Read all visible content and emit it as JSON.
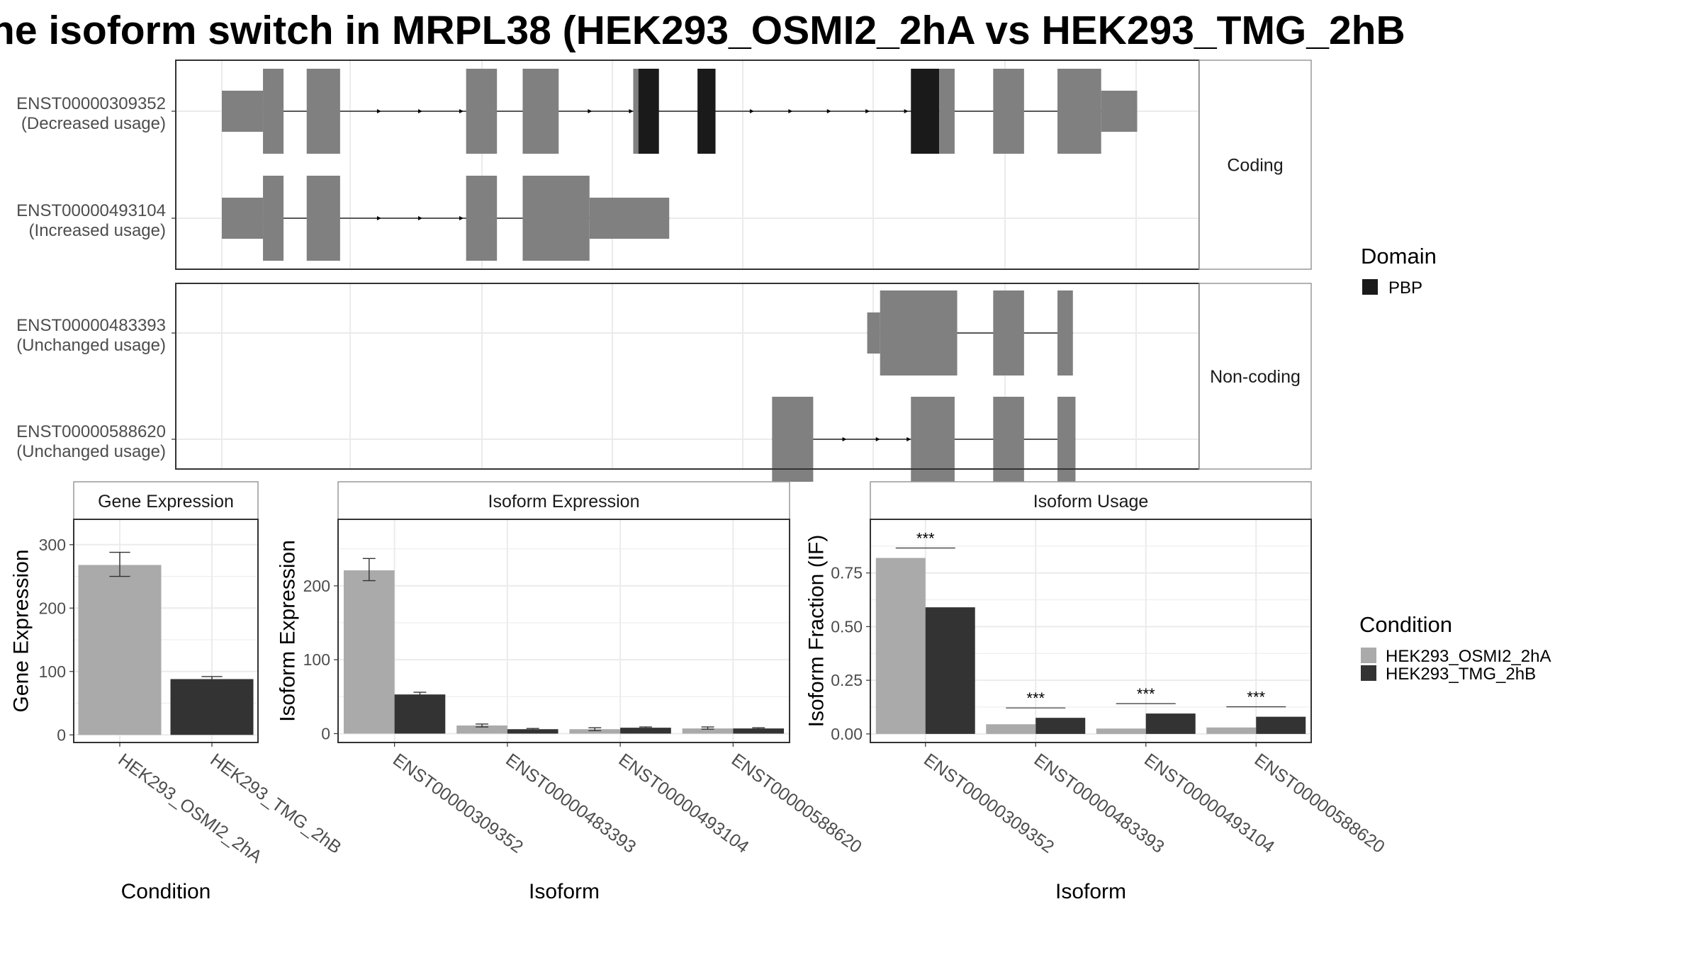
{
  "title": "he isoform switch in MRPL38 (HEK293_OSMI2_2hA vs HEK293_TMG_2hB",
  "colors": {
    "exon": "#808080",
    "domain": "#1a1a1a",
    "cond_a": "#aaaaaa",
    "cond_b": "#333333",
    "grid": "#ebebeb",
    "axis_text": "#4d4d4d"
  },
  "structure": {
    "panels": [
      {
        "strip": "Coding",
        "transcripts": [
          {
            "id": "ENST00000309352",
            "usage": "(Decreased usage)",
            "segments": [
              {
                "s": 0,
                "e": 16,
                "h": "utr"
              },
              {
                "s": 16,
                "e": 24,
                "h": "cds"
              },
              {
                "s": 33,
                "e": 46,
                "h": "cds"
              },
              {
                "s": 95,
                "e": 107,
                "h": "cds"
              },
              {
                "s": 117,
                "e": 131,
                "h": "cds"
              },
              {
                "s": 160,
                "e": 162,
                "h": "cds"
              },
              {
                "s": 162,
                "e": 170,
                "h": "cds",
                "d": true
              },
              {
                "s": 185,
                "e": 192,
                "h": "cds",
                "d": true
              },
              {
                "s": 268,
                "e": 279,
                "h": "cds",
                "d": true
              },
              {
                "s": 279,
                "e": 285,
                "h": "cds"
              },
              {
                "s": 300,
                "e": 312,
                "h": "cds"
              },
              {
                "s": 325,
                "e": 342,
                "h": "cds"
              },
              {
                "s": 342,
                "e": 356,
                "h": "utr"
              }
            ],
            "arrows": [
              62,
              78,
              94,
              144,
              160,
              207,
              222,
              237,
              252,
              267
            ]
          },
          {
            "id": "ENST00000493104",
            "usage": "(Increased usage)",
            "segments": [
              {
                "s": 0,
                "e": 16,
                "h": "utr"
              },
              {
                "s": 16,
                "e": 24,
                "h": "cds"
              },
              {
                "s": 33,
                "e": 46,
                "h": "cds"
              },
              {
                "s": 95,
                "e": 107,
                "h": "cds"
              },
              {
                "s": 117,
                "e": 143,
                "h": "cds"
              },
              {
                "s": 143,
                "e": 174,
                "h": "utr"
              }
            ],
            "arrows": [
              62,
              78,
              94
            ]
          }
        ]
      },
      {
        "strip": "Non-coding",
        "transcripts": [
          {
            "id": "ENST00000483393",
            "usage": "(Unchanged usage)",
            "segments": [
              {
                "s": 251,
                "e": 256,
                "h": "utr"
              },
              {
                "s": 256,
                "e": 286,
                "h": "cds"
              },
              {
                "s": 300,
                "e": 312,
                "h": "cds"
              },
              {
                "s": 325,
                "e": 331,
                "h": "cds"
              }
            ],
            "arrows": []
          },
          {
            "id": "ENST00000588620",
            "usage": "(Unchanged usage)",
            "segments": [
              {
                "s": 214,
                "e": 230,
                "h": "cds"
              },
              {
                "s": 268,
                "e": 285,
                "h": "cds"
              },
              {
                "s": 300,
                "e": 312,
                "h": "cds"
              },
              {
                "s": 325,
                "e": 332,
                "h": "cds"
              }
            ],
            "arrows": [
              243,
              256,
              268
            ]
          }
        ]
      }
    ]
  },
  "legend_domain": {
    "title": "Domain",
    "items": [
      "PBP"
    ]
  },
  "legend_condition": {
    "title": "Condition",
    "items": [
      "HEK293_OSMI2_2hA",
      "HEK293_TMG_2hB"
    ]
  },
  "chart_data": [
    {
      "type": "bar",
      "title": "Gene Expression",
      "xlabel": "Condition",
      "ylabel": "Gene Expression",
      "categories": [
        "HEK293_OSMI2_2hA",
        "HEK293_TMG_2hB"
      ],
      "values": [
        268,
        88
      ],
      "errors": [
        [
          250,
          288
        ],
        [
          85,
          92
        ]
      ],
      "ylim": [
        -12,
        340
      ],
      "yticks": [
        0,
        100,
        200,
        300
      ]
    },
    {
      "type": "bar",
      "title": "Isoform Expression",
      "xlabel": "Isoform",
      "ylabel": "Isoform Expression",
      "categories": [
        "ENST00000309352",
        "ENST00000483393",
        "ENST00000493104",
        "ENST00000588620"
      ],
      "series": [
        {
          "name": "HEK293_OSMI2_2hA",
          "values": [
            221,
            11,
            6,
            7
          ],
          "errors": [
            [
              207,
              237
            ],
            [
              9,
              13
            ],
            [
              4,
              8
            ],
            [
              6,
              9
            ]
          ]
        },
        {
          "name": "HEK293_TMG_2hB",
          "values": [
            53,
            6,
            8,
            7
          ],
          "errors": [
            [
              51,
              56
            ],
            [
              5,
              7
            ],
            [
              7,
              9
            ],
            [
              6,
              8
            ]
          ]
        }
      ],
      "ylim": [
        -12,
        290
      ],
      "yticks": [
        0,
        100,
        200
      ]
    },
    {
      "type": "bar",
      "title": "Isoform Usage",
      "xlabel": "Isoform",
      "ylabel": "Isoform Fraction (IF)",
      "categories": [
        "ENST00000309352",
        "ENST00000483393",
        "ENST00000493104",
        "ENST00000588620"
      ],
      "series": [
        {
          "name": "HEK293_OSMI2_2hA",
          "values": [
            0.82,
            0.045,
            0.025,
            0.03
          ]
        },
        {
          "name": "HEK293_TMG_2hB",
          "values": [
            0.59,
            0.075,
            0.095,
            0.08
          ]
        }
      ],
      "significance": [
        "***",
        "***",
        "***",
        "***"
      ],
      "ylim": [
        -0.04,
        1.0
      ],
      "yticks": [
        0.0,
        0.25,
        0.5,
        0.75
      ],
      "ytick_labels": [
        "0.00",
        "0.25",
        "0.50",
        "0.75"
      ]
    }
  ]
}
